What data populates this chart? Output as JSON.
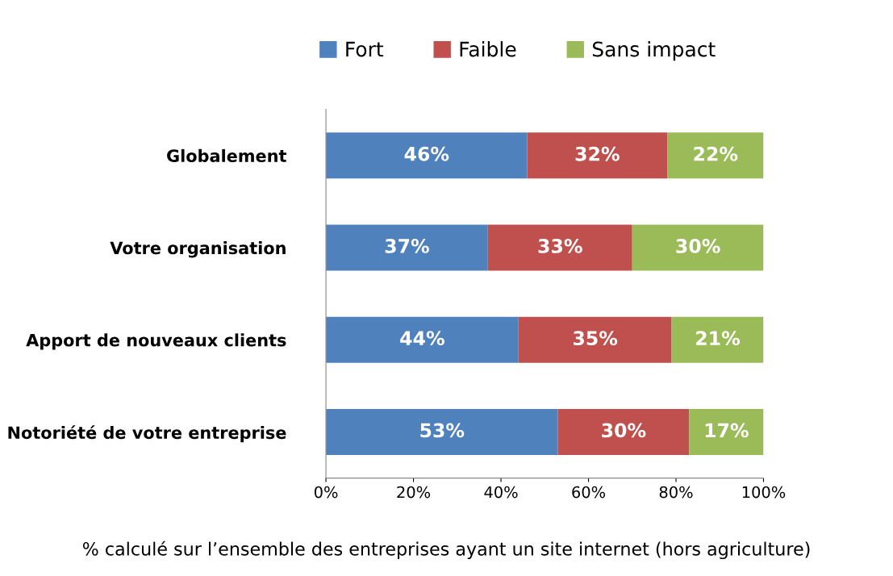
{
  "chart_data": {
    "type": "bar",
    "orientation": "horizontal",
    "stacked": true,
    "categories": [
      "Globalement",
      "Votre organisation",
      "Apport de nouveaux clients",
      "Notoriété de votre entreprise"
    ],
    "series": [
      {
        "name": "Fort",
        "color": "#4f81bd",
        "values": [
          46,
          37,
          44,
          53
        ],
        "value_labels": [
          "46%",
          "37%",
          "44%",
          "53%"
        ]
      },
      {
        "name": "Faible",
        "color": "#c0504d",
        "values": [
          32,
          33,
          35,
          30
        ],
        "value_labels": [
          "32%",
          "33%",
          "35%",
          "30%"
        ]
      },
      {
        "name": "Sans impact",
        "color": "#9bbb59",
        "values": [
          22,
          30,
          21,
          17
        ],
        "value_labels": [
          "22%",
          "30%",
          "21%",
          "17%"
        ]
      }
    ],
    "xlim": [
      0,
      100
    ],
    "xticks": [
      {
        "value": 0,
        "label": "0%"
      },
      {
        "value": 20,
        "label": "20%"
      },
      {
        "value": 40,
        "label": "40%"
      },
      {
        "value": 60,
        "label": "60%"
      },
      {
        "value": 80,
        "label": "80%"
      },
      {
        "value": 100,
        "label": "100%"
      }
    ],
    "grid": false,
    "legend": "top",
    "annotations": [
      "% calculé sur l’ensemble des entreprises ayant un site internet (hors agriculture)"
    ]
  }
}
